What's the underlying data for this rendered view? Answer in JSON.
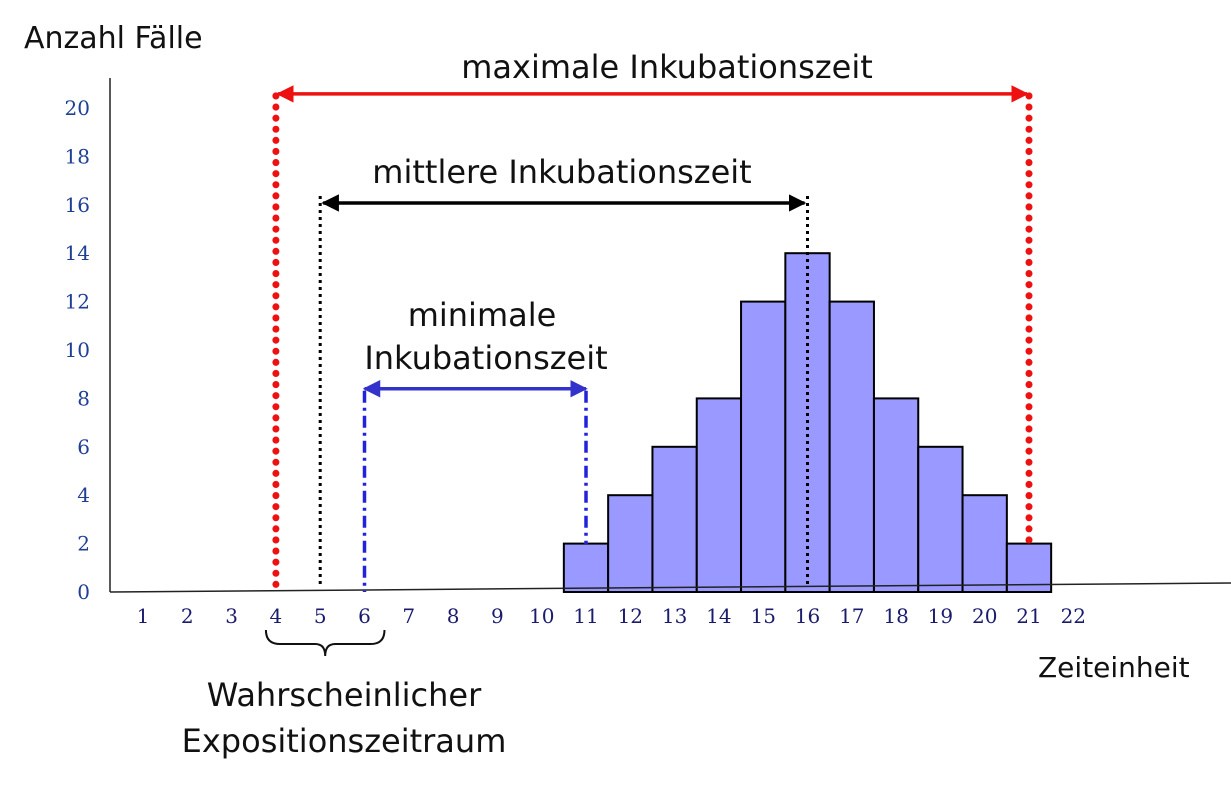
{
  "chart_data": {
    "type": "bar",
    "ylabel": "Anzahl Fälle",
    "xlabel": "Zeiteinheit",
    "x_ticks": [
      1,
      2,
      3,
      4,
      5,
      6,
      7,
      8,
      9,
      10,
      11,
      12,
      13,
      14,
      15,
      16,
      17,
      18,
      19,
      20,
      21,
      22
    ],
    "y_ticks": [
      0,
      2,
      4,
      6,
      8,
      10,
      12,
      14,
      16,
      18,
      20
    ],
    "xlim": [
      1,
      22
    ],
    "ylim": [
      0,
      20
    ],
    "categories": [
      11,
      12,
      13,
      14,
      15,
      16,
      17,
      18,
      19,
      20,
      21
    ],
    "values": [
      2,
      4,
      6,
      8,
      12,
      14,
      12,
      8,
      6,
      4,
      2
    ],
    "colors": {
      "bar_fill": "#9999ff",
      "bar_stroke": "#000000",
      "max_color": "#ee1111",
      "mid_color": "#000000",
      "min_color": "#3333cc"
    },
    "annotations": {
      "max_label": "maximale Inkubationszeit",
      "mid_label": "mittlere Inkubationszeit",
      "min_label_line1": "minimale",
      "min_label_line2": "Inkubationszeit",
      "exposure_label_line1": "Wahrscheinlicher",
      "exposure_label_line2": "Expositionszeitraum"
    },
    "spans": {
      "max": {
        "from": 4,
        "to": 21,
        "level": 20.5
      },
      "mid": {
        "from": 5,
        "to": 16,
        "level": 16.2
      },
      "min": {
        "from": 6,
        "to": 11,
        "level": 8.4
      },
      "exposure": {
        "from": 4,
        "to": 6
      }
    }
  }
}
